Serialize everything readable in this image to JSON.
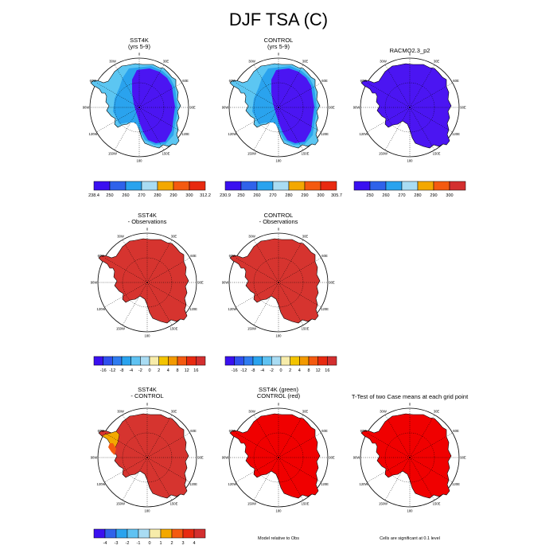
{
  "page": {
    "title": "DJF TSA (C)"
  },
  "longitude_labels": [
    "0",
    "30E",
    "60E",
    "90E",
    "120E",
    "150E",
    "180",
    "150W",
    "120W",
    "90W",
    "60W",
    "30W"
  ],
  "panels": [
    {
      "id": "sst4k",
      "title_line1": "SST4K",
      "title_line2": "(yrs 5-9)",
      "fill": "model",
      "colorbar": "abs_a"
    },
    {
      "id": "control",
      "title_line1": "CONTROL",
      "title_line2": "(yrs 5-9)",
      "fill": "model",
      "colorbar": "abs_b"
    },
    {
      "id": "racmo",
      "title_line1": "RACMO2.3_p2",
      "title_line2": "",
      "fill": "obs",
      "colorbar": "abs_c"
    },
    {
      "id": "sst4k_obs",
      "title_line1": "SST4K",
      "title_line2": "- Observations",
      "fill": "bias",
      "colorbar": "bias_a"
    },
    {
      "id": "ctrl_obs",
      "title_line1": "CONTROL",
      "title_line2": "- Observations",
      "fill": "bias",
      "colorbar": "bias_b"
    },
    {
      "id": "diff",
      "title_line1": "SST4K",
      "title_line2": "- CONTROL",
      "fill": "diff",
      "colorbar": "diff"
    },
    {
      "id": "rel",
      "title_line1": "SST4K (green)",
      "title_line2": "CONTROL (red)",
      "fill": "rel",
      "note": "Model relative to Obs"
    },
    {
      "id": "ttest",
      "title_line1": "T-Test of two Case means at each grid point",
      "title_line2": "",
      "fill": "ttest",
      "note": "Cells are significant at 0.1 level"
    }
  ],
  "colorbars": {
    "abs_a": {
      "labels": [
        "238.4",
        "250",
        "260",
        "270",
        "280",
        "290",
        "300",
        "312.2"
      ],
      "label_mode": "edges",
      "colors": [
        "#3a10f0",
        "#2f62ea",
        "#2aa3ee",
        "#a9dcf3",
        "#f3a800",
        "#f45a10",
        "#e82a10"
      ]
    },
    "abs_b": {
      "labels": [
        "230.9",
        "250",
        "260",
        "270",
        "280",
        "290",
        "300",
        "305.7"
      ],
      "label_mode": "edges",
      "colors": [
        "#3a10f0",
        "#2f62ea",
        "#2aa3ee",
        "#a9dcf3",
        "#f3a800",
        "#f45a10",
        "#e82a10"
      ]
    },
    "abs_c": {
      "labels": [
        "250",
        "260",
        "270",
        "280",
        "290",
        "300"
      ],
      "label_mode": "inner",
      "colors": [
        "#3a10f0",
        "#2f62ea",
        "#2aa3ee",
        "#a9dcf3",
        "#f3a800",
        "#f45a10",
        "#d32f2f"
      ]
    },
    "bias_a": {
      "labels": [
        "-16",
        "-12",
        "-8",
        "-4",
        "-2",
        "0",
        "2",
        "4",
        "8",
        "12",
        "16"
      ],
      "label_mode": "inner",
      "colors": [
        "#3a10f0",
        "#2f50ee",
        "#2f7cf0",
        "#2aa3ee",
        "#5fc2f2",
        "#a9dcf3",
        "#f7ecaa",
        "#f3c400",
        "#f39a00",
        "#f45a10",
        "#e82a10",
        "#d32f2f"
      ]
    },
    "bias_b": {
      "labels": [
        "-16",
        "-12",
        "-8",
        "-4",
        "-2",
        "0",
        "2",
        "4",
        "8",
        "12",
        "16"
      ],
      "label_mode": "inner",
      "colors": [
        "#3a10f0",
        "#2f50ee",
        "#2f7cf0",
        "#2aa3ee",
        "#5fc2f2",
        "#a9dcf3",
        "#f7ecaa",
        "#f3c400",
        "#f39a00",
        "#f45a10",
        "#e82a10",
        "#d32f2f"
      ]
    },
    "diff": {
      "labels": [
        "-4",
        "-3",
        "-2",
        "-1",
        "0",
        "1",
        "2",
        "3",
        "4"
      ],
      "label_mode": "inner",
      "colors": [
        "#3a10f0",
        "#2f62ea",
        "#2aa3ee",
        "#5fc2f2",
        "#a9dcf3",
        "#f7ecaa",
        "#f3a800",
        "#f45a10",
        "#e82a10",
        "#d32f2f"
      ]
    }
  },
  "fill_colors": {
    "interior": "#4b15f2",
    "coast_light": "#5cc6f2",
    "coast_mid": "#2aa3ee",
    "bias": "#d6342f",
    "diff": "#d6342f",
    "diff_peninsula": "#f3a800",
    "rel": "#f00000",
    "ttest": "#f00000"
  },
  "chart_data": {
    "type": "map",
    "title": "DJF TSA (C)",
    "projection": "south polar stereographic, Antarctica",
    "panels": [
      "SST4K (yrs 5-9)",
      "CONTROL (yrs 5-9)",
      "RACMO2.3_p2",
      "SST4K - Observations",
      "CONTROL - Observations",
      "SST4K - CONTROL",
      "SST4K (green) CONTROL (red)",
      "T-Test of two Case means at each grid point"
    ]
  }
}
